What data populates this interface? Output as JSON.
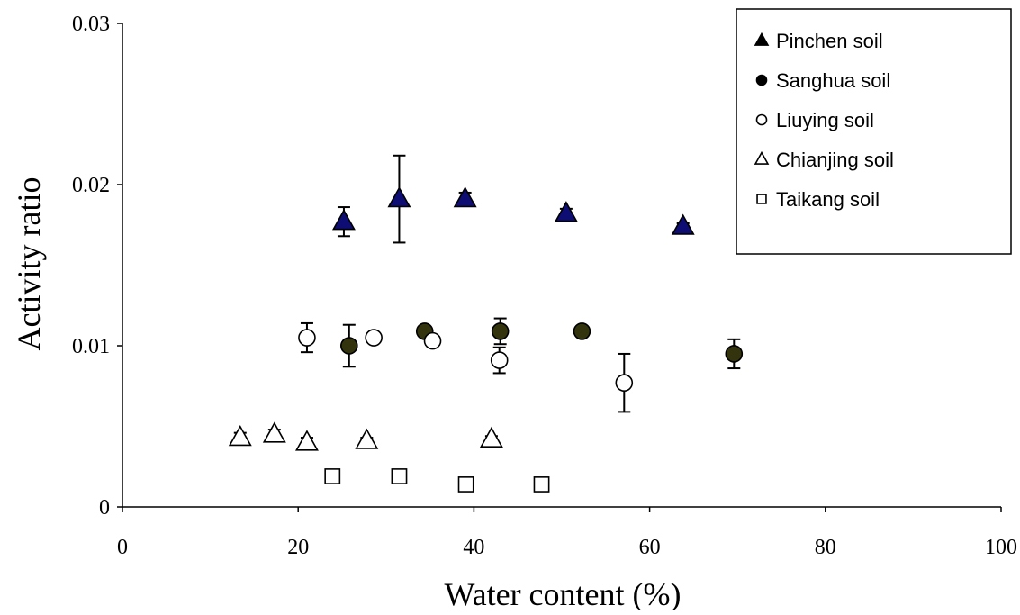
{
  "chart_data": {
    "type": "scatter",
    "xlabel": "Water content (%)",
    "ylabel": "Activity ratio",
    "xlim": [
      0,
      100
    ],
    "ylim": [
      0,
      0.03
    ],
    "x_ticks": [
      {
        "value": 0,
        "label": "0"
      },
      {
        "value": 20,
        "label": "20"
      },
      {
        "value": 40,
        "label": "40"
      },
      {
        "value": 60,
        "label": "60"
      },
      {
        "value": 80,
        "label": "80"
      },
      {
        "value": 100,
        "label": "100"
      }
    ],
    "y_ticks": [
      {
        "value": 0,
        "label": "0"
      },
      {
        "value": 0.01,
        "label": "0.01"
      },
      {
        "value": 0.02,
        "label": "0.02"
      },
      {
        "value": 0.03,
        "label": "0.03"
      }
    ],
    "grid": false,
    "legend_position": "top-right",
    "series": [
      {
        "name": "Pinchen soil",
        "marker": "triangle",
        "fill": "#0d0d73",
        "legend_fill": "#000000",
        "points": [
          {
            "x": 25.2,
            "y": 0.0177,
            "err": 0.0009
          },
          {
            "x": 31.5,
            "y": 0.0191,
            "err": 0.0027
          },
          {
            "x": 39.0,
            "y": 0.0191,
            "err": 0.0004
          },
          {
            "x": 50.5,
            "y": 0.0182,
            "err": 0.0003
          },
          {
            "x": 63.8,
            "y": 0.0174,
            "err": 0.0002
          }
        ]
      },
      {
        "name": "Sanghua soil",
        "marker": "circle",
        "fill": "#33330d",
        "legend_fill": "#000000",
        "points": [
          {
            "x": 25.8,
            "y": 0.01,
            "err": 0.0013
          },
          {
            "x": 34.4,
            "y": 0.0109,
            "err": 0.0003
          },
          {
            "x": 43.0,
            "y": 0.0109,
            "err": 0.0008
          },
          {
            "x": 52.3,
            "y": 0.0109,
            "err": 0.0002
          },
          {
            "x": 69.6,
            "y": 0.0095,
            "err": 0.0009
          }
        ]
      },
      {
        "name": "Liuying soil",
        "marker": "circle",
        "fill": "#ffffff",
        "legend_fill": "#ffffff",
        "points": [
          {
            "x": 21.0,
            "y": 0.0105,
            "err": 0.0009
          },
          {
            "x": 28.6,
            "y": 0.0105,
            "err": 0.0002
          },
          {
            "x": 35.3,
            "y": 0.0103,
            "err": 0.0002
          },
          {
            "x": 42.9,
            "y": 0.0091,
            "err": 0.0008
          },
          {
            "x": 57.1,
            "y": 0.0077,
            "err": 0.0018
          }
        ]
      },
      {
        "name": "Chianjing soil",
        "marker": "triangle",
        "fill": "#ffffff",
        "legend_fill": "#ffffff",
        "points": [
          {
            "x": 13.4,
            "y": 0.0043,
            "err": 0.0003
          },
          {
            "x": 17.3,
            "y": 0.0045,
            "err": 0.0003
          },
          {
            "x": 21.0,
            "y": 0.004,
            "err": 0.0003
          },
          {
            "x": 27.8,
            "y": 0.0041,
            "err": 0.0002
          },
          {
            "x": 42.0,
            "y": 0.0042,
            "err": 0.0002
          }
        ]
      },
      {
        "name": "Taikang soil",
        "marker": "square",
        "fill": "#ffffff",
        "legend_fill": "#ffffff",
        "points": [
          {
            "x": 23.9,
            "y": 0.0019,
            "err": 0.0002
          },
          {
            "x": 31.5,
            "y": 0.0019,
            "err": 0.0002
          },
          {
            "x": 39.1,
            "y": 0.0014,
            "err": 0.0002
          },
          {
            "x": 47.7,
            "y": 0.0014,
            "err": 0.0002
          }
        ]
      }
    ]
  }
}
